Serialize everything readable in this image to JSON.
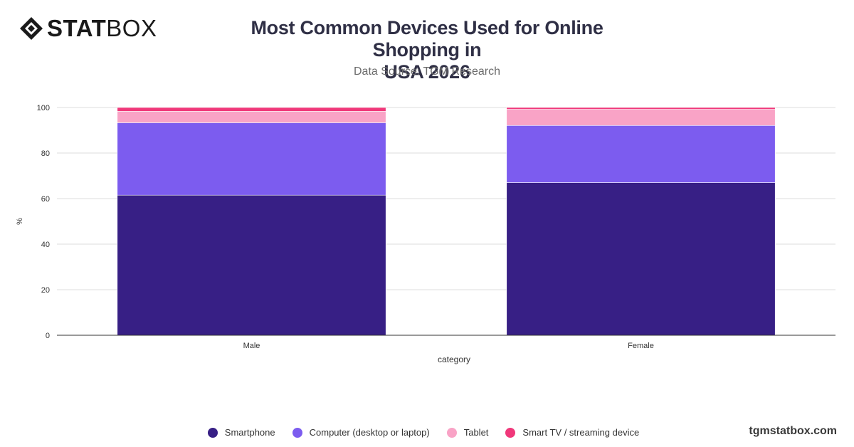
{
  "brand": {
    "logo_bold": "STAT",
    "logo_light": "BOX",
    "watermark": "tgmstatbox.com"
  },
  "header": {
    "title_line1": "Most Common Devices Used for Online Shopping in",
    "title_line2": "USA 2026",
    "subtitle": "Data Source: TGM Research"
  },
  "chart_data": {
    "type": "bar",
    "stacked": true,
    "categories": [
      "Male",
      "Female"
    ],
    "series": [
      {
        "name": "Smartphone",
        "color": "#371f85",
        "values": [
          61.5,
          67.0
        ]
      },
      {
        "name": "Computer (desktop or laptop)",
        "color": "#7c5cef",
        "values": [
          31.8,
          25.1
        ]
      },
      {
        "name": "Tablet",
        "color": "#f9a3c6",
        "values": [
          5.0,
          7.1
        ]
      },
      {
        "name": "Smart TV / streaming device",
        "color": "#f0387a",
        "values": [
          1.7,
          0.8
        ]
      }
    ],
    "title": "Most Common Devices Used for Online Shopping in USA 2026",
    "xlabel": "category",
    "ylabel": "%",
    "ylim": [
      0,
      100
    ],
    "yticks": [
      0,
      20,
      40,
      60,
      80,
      100
    ],
    "grid": true,
    "legend": "bottom"
  }
}
